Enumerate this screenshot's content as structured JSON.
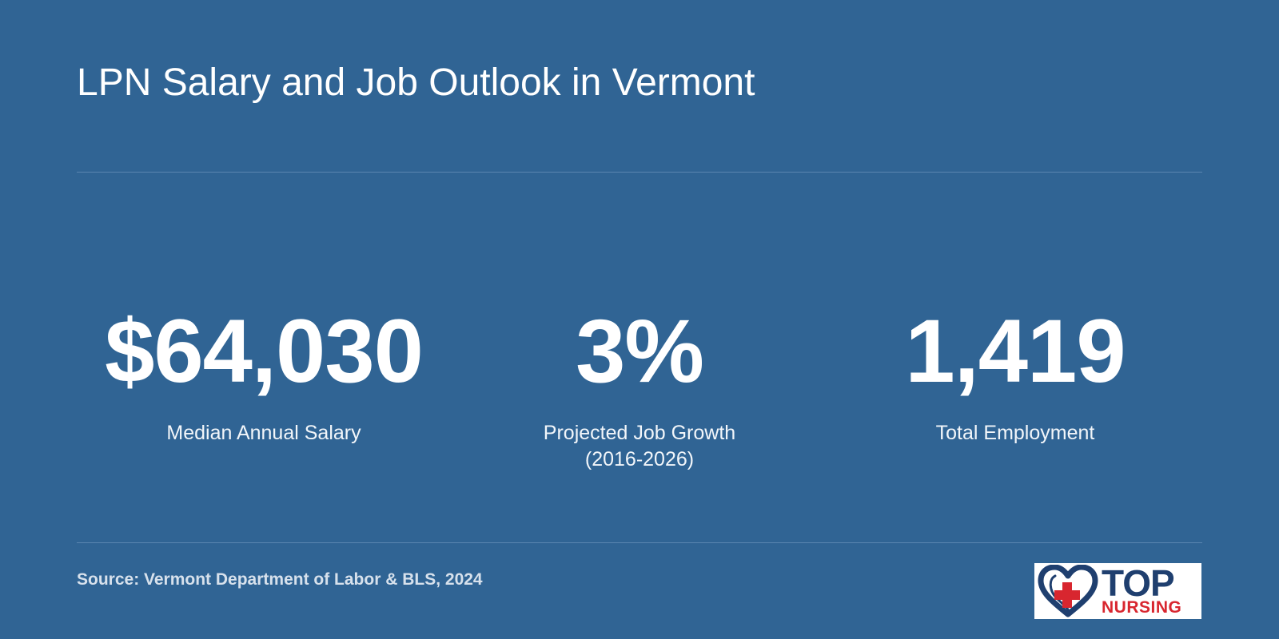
{
  "title": "LPN Salary and Job Outlook in Vermont",
  "stats": [
    {
      "value": "$64,030",
      "label": "Median Annual Salary"
    },
    {
      "value": "3%",
      "label": "Projected Job Growth",
      "label_line2": "(2016-2026)"
    },
    {
      "value": "1,419",
      "label": "Total Employment"
    }
  ],
  "source": "Source: Vermont Department of Labor & BLS, 2024",
  "logo": {
    "line1": "TOP",
    "line2": "NURSING",
    "icon": "heart-cross-icon"
  },
  "colors": {
    "background": "#306494",
    "text": "#ffffff",
    "rule": "#5a86b0",
    "logo_blue": "#1f3f6f",
    "logo_red": "#d8262f"
  }
}
